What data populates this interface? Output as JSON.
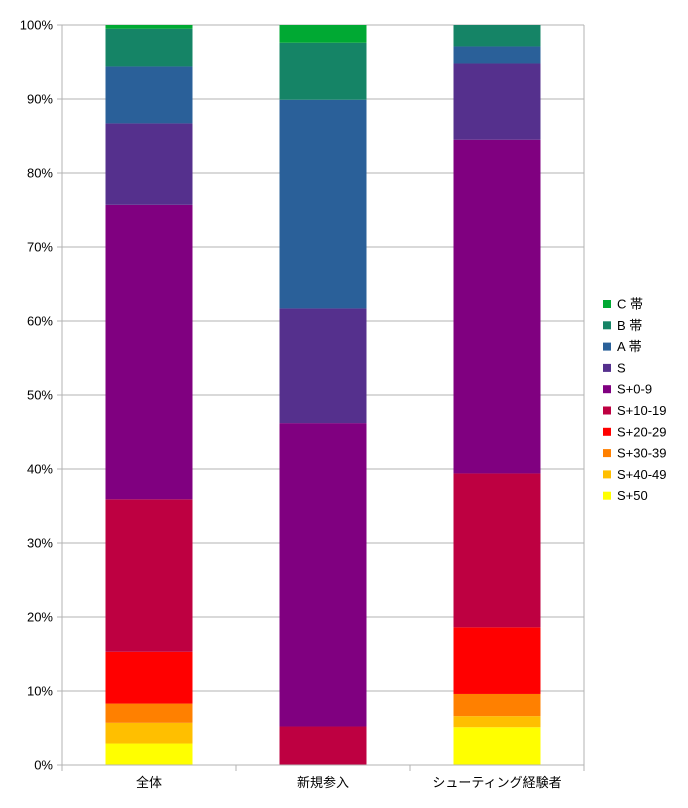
{
  "chart_data": {
    "type": "bar",
    "stacked": true,
    "percent": true,
    "title": "",
    "xlabel": "",
    "ylabel": "",
    "ylim": [
      0,
      100
    ],
    "yticks": [
      "0%",
      "10%",
      "20%",
      "30%",
      "40%",
      "50%",
      "60%",
      "70%",
      "80%",
      "90%",
      "100%"
    ],
    "categories": [
      "全体",
      "新規参入",
      "シューティング経験者"
    ],
    "legend_position": "right",
    "series": [
      {
        "name": "S+50",
        "color": "#ffff00",
        "values": [
          2.9,
          0.0,
          5.1
        ]
      },
      {
        "name": "S+40-49",
        "color": "#ffbf00",
        "values": [
          2.8,
          0.0,
          1.5
        ]
      },
      {
        "name": "S+30-39",
        "color": "#ff8000",
        "values": [
          2.6,
          0.0,
          3.0
        ]
      },
      {
        "name": "S+20-29",
        "color": "#ff0000",
        "values": [
          7.0,
          0.0,
          9.0
        ]
      },
      {
        "name": "S+10-19",
        "color": "#be0041",
        "values": [
          20.6,
          5.2,
          20.8
        ]
      },
      {
        "name": "S+0-9",
        "color": "#800080",
        "values": [
          39.8,
          41.0,
          45.1
        ]
      },
      {
        "name": "S",
        "color": "#55308d",
        "values": [
          11.0,
          15.5,
          10.3
        ]
      },
      {
        "name": "A 帯",
        "color": "#2a6099",
        "values": [
          7.7,
          28.2,
          2.3
        ]
      },
      {
        "name": "B 帯",
        "color": "#158466",
        "values": [
          5.1,
          7.7,
          2.9
        ]
      },
      {
        "name": "C 帯",
        "color": "#00a933",
        "values": [
          0.5,
          2.4,
          0.0
        ]
      }
    ]
  }
}
